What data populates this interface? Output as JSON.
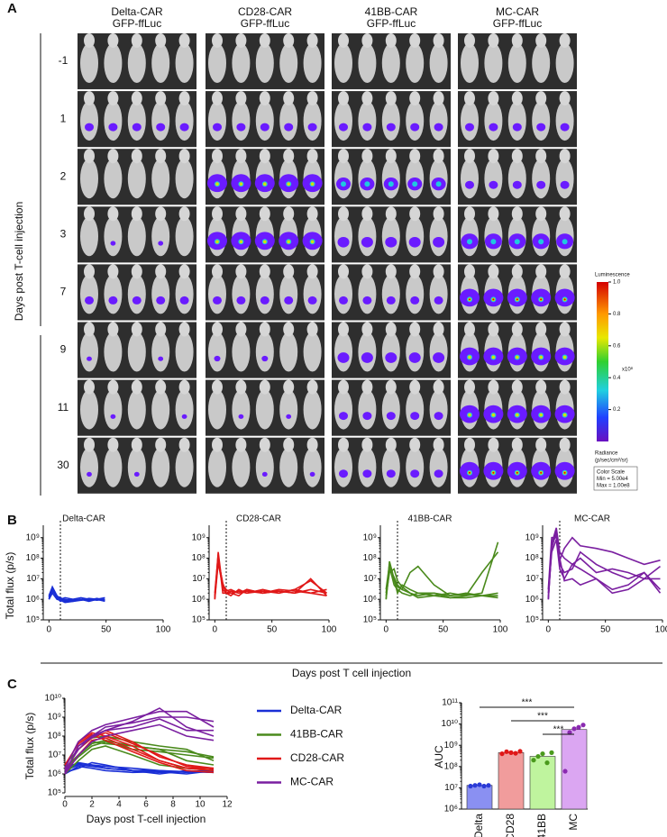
{
  "panel_labels": [
    "A",
    "B",
    "C"
  ],
  "panel_a": {
    "columns": [
      [
        "Delta-CAR",
        "GFP-ffLuc"
      ],
      [
        "CD28-CAR",
        "GFP-ffLuc"
      ],
      [
        "41BB-CAR",
        "GFP-ffLuc"
      ],
      [
        "MC-CAR",
        "GFP-ffLuc"
      ]
    ],
    "rows": [
      "-1",
      "1",
      "2",
      "3",
      "7",
      "9",
      "11",
      "30"
    ],
    "y_label": "Days post T-cell injection",
    "colorbar": {
      "title": "Luminescence",
      "lim": [
        0,
        1
      ],
      "ticks": [
        {
          "value": 1,
          "label": "1.0"
        },
        0.8,
        0.6,
        0.4,
        0.2
      ],
      "multiplier": "x10⁸",
      "unit_label": [
        "Radiance",
        "(p/sec/cm²/sr)"
      ],
      "scale_box": [
        "Color Scale",
        "Min = 5.00e4",
        "Max = 1.00e8"
      ]
    }
  },
  "panel_b": {
    "x_label": "Days post T cell injection",
    "y_label": "Total flux (p/s)"
  },
  "chart_data": [
    {
      "type": "line",
      "title": "Delta-CAR",
      "log_scale": true,
      "vline": 10,
      "xlim": [
        -5,
        100
      ],
      "xticks": [
        0,
        50,
        100
      ],
      "ylim": [
        100000.0,
        4000000000.0
      ],
      "yticks": [
        {
          "value": 100000.0,
          "label": "10⁵"
        },
        {
          "value": 1000000.0,
          "label": "10⁶"
        },
        {
          "value": 10000000.0,
          "label": "10⁷"
        },
        {
          "value": 100000000.0,
          "label": "10⁸"
        },
        {
          "value": 1000000000.0,
          "label": "10⁹"
        }
      ],
      "x": [
        0,
        3,
        7,
        10,
        14,
        21,
        28,
        35,
        42,
        49
      ],
      "series": [
        {
          "color": "#1a2fd6",
          "values": [
            1500000.0,
            4000000.0,
            1500000.0,
            1000000.0,
            1200000.0,
            1000000.0,
            900000.0,
            1000000.0,
            1000000.0,
            800000.0
          ]
        },
        {
          "color": "#1a2fd6",
          "values": [
            1000000.0,
            3000000.0,
            1200000.0,
            800000.0,
            1000000.0,
            800000.0,
            1000000.0,
            900000.0,
            1100000.0,
            900000.0
          ]
        },
        {
          "color": "#1a2fd6",
          "values": [
            1200000.0,
            2500000.0,
            1400000.0,
            1200000.0,
            900000.0,
            1000000.0,
            1200000.0,
            1000000.0,
            900000.0,
            1000000.0
          ]
        },
        {
          "color": "#1a2fd6",
          "values": [
            1000000.0,
            2000000.0,
            1000000.0,
            900000.0,
            700000.0,
            800000.0,
            900000.0,
            1100000.0,
            1000000.0,
            1200000.0
          ]
        },
        {
          "color": "#1a2fd6",
          "values": [
            1300000.0,
            3500000.0,
            1100000.0,
            1000000.0,
            800000.0,
            900000.0,
            1000000.0,
            800000.0,
            1000000.0,
            900000.0
          ]
        }
      ]
    },
    {
      "type": "line",
      "title": "CD28-CAR",
      "log_scale": true,
      "vline": 10,
      "xlim": [
        -5,
        100
      ],
      "xticks": [
        0,
        50,
        100
      ],
      "ylim": [
        100000.0,
        4000000000.0
      ],
      "yticks": [
        {
          "value": 100000.0,
          "label": "10⁵"
        },
        {
          "value": 1000000.0,
          "label": "10⁶"
        },
        {
          "value": 10000000.0,
          "label": "10⁷"
        },
        {
          "value": 100000000.0,
          "label": "10⁸"
        },
        {
          "value": 1000000000.0,
          "label": "10⁹"
        }
      ],
      "x": [
        0,
        3,
        7,
        10,
        14,
        21,
        28,
        42,
        56,
        70,
        84,
        98
      ],
      "series": [
        {
          "color": "#e01818",
          "values": [
            1000000.0,
            200000000.0,
            3000000.0,
            2000000.0,
            2500000.0,
            2000000.0,
            3000000.0,
            2000000.0,
            2500000.0,
            2000000.0,
            3000000.0,
            2000000.0
          ]
        },
        {
          "color": "#e01818",
          "values": [
            1500000.0,
            100000000.0,
            5000000.0,
            3000000.0,
            2000000.0,
            2500000.0,
            2000000.0,
            3000000.0,
            2000000.0,
            3000000.0,
            8000000.0,
            2000000.0
          ]
        },
        {
          "color": "#e01818",
          "values": [
            1000000.0,
            60000000.0,
            4000000.0,
            2500000.0,
            3000000.0,
            2000000.0,
            2500000.0,
            2000000.0,
            3000000.0,
            2500000.0,
            2000000.0,
            1500000.0
          ]
        },
        {
          "color": "#e01818",
          "values": [
            2000000.0,
            150000000.0,
            2000000.0,
            2000000.0,
            1500000.0,
            3000000.0,
            2000000.0,
            2500000.0,
            2000000.0,
            3000000.0,
            2000000.0,
            3000000.0
          ]
        },
        {
          "color": "#e01818",
          "values": [
            1200000.0,
            80000000.0,
            6000000.0,
            2000000.0,
            2000000.0,
            1500000.0,
            3000000.0,
            2000000.0,
            2500000.0,
            2000000.0,
            10000000.0,
            1500000.0
          ]
        }
      ]
    },
    {
      "type": "line",
      "title": "41BB-CAR",
      "log_scale": true,
      "vline": 10,
      "xlim": [
        -5,
        100
      ],
      "xticks": [
        0,
        50,
        100
      ],
      "ylim": [
        100000.0,
        4000000000.0
      ],
      "yticks": [
        {
          "value": 100000.0,
          "label": "10⁵"
        },
        {
          "value": 1000000.0,
          "label": "10⁶"
        },
        {
          "value": 10000000.0,
          "label": "10⁷"
        },
        {
          "value": 100000000.0,
          "label": "10⁸"
        },
        {
          "value": 1000000000.0,
          "label": "10⁹"
        }
      ],
      "x": [
        0,
        3,
        7,
        10,
        14,
        21,
        28,
        42,
        56,
        70,
        84,
        98
      ],
      "series": [
        {
          "color": "#4a8a1c",
          "values": [
            1000000.0,
            70000000.0,
            10000000.0,
            2000000.0,
            5000000.0,
            3000000.0,
            2000000.0,
            1500000.0,
            2000000.0,
            1500000.0,
            2000000.0,
            600000000.0
          ]
        },
        {
          "color": "#4a8a1c",
          "values": [
            2000000.0,
            40000000.0,
            5000000.0,
            3000000.0,
            2000000.0,
            1500000.0,
            2000000.0,
            2000000.0,
            1500000.0,
            2000000.0,
            1500000.0,
            2000000.0
          ]
        },
        {
          "color": "#4a8a1c",
          "values": [
            1500000.0,
            20000000.0,
            30000000.0,
            8000000.0,
            4000000.0,
            2000000.0,
            1500000.0,
            2000000.0,
            1200000.0,
            1500000.0,
            20000000.0,
            200000000.0
          ]
        },
        {
          "color": "#4a8a1c",
          "values": [
            3000000.0,
            50000000.0,
            8000000.0,
            4000000.0,
            3000000.0,
            2000000.0,
            1200000.0,
            1500000.0,
            1200000.0,
            1200000.0,
            1500000.0,
            1200000.0
          ]
        },
        {
          "color": "#4a8a1c",
          "values": [
            1000000.0,
            30000000.0,
            12000000.0,
            5000000.0,
            3000000.0,
            20000000.0,
            40000000.0,
            5000000.0,
            1500000.0,
            1800000.0,
            1500000.0,
            1500000.0
          ]
        }
      ]
    },
    {
      "type": "line",
      "title": "MC-CAR",
      "log_scale": true,
      "vline": 10,
      "xlim": [
        -5,
        100
      ],
      "xticks": [
        0,
        50,
        100
      ],
      "ylim": [
        100000.0,
        4000000000.0
      ],
      "yticks": [
        {
          "value": 100000.0,
          "label": "10⁵"
        },
        {
          "value": 1000000.0,
          "label": "10⁶"
        },
        {
          "value": 10000000.0,
          "label": "10⁷"
        },
        {
          "value": 100000000.0,
          "label": "10⁸"
        },
        {
          "value": 1000000000.0,
          "label": "10⁹"
        }
      ],
      "x": [
        0,
        3,
        7,
        10,
        14,
        21,
        28,
        42,
        56,
        70,
        84,
        98
      ],
      "series": [
        {
          "color": "#7a1fa0",
          "values": [
            1000000.0,
            500000000.0,
            3000000000.0,
            200000000.0,
            100000000.0,
            50000000.0,
            100000000.0,
            20000000.0,
            30000000.0,
            20000000.0,
            10000000.0,
            40000000.0
          ]
        },
        {
          "color": "#7a1fa0",
          "values": [
            3000000.0,
            1000000000.0,
            1000000000.0,
            80000000.0,
            300000000.0,
            1000000000.0,
            400000000.0,
            300000000.0,
            200000000.0,
            100000000.0,
            50000000.0,
            80000000.0
          ]
        },
        {
          "color": "#7a1fa0",
          "values": [
            1000000.0,
            300000000.0,
            2000000000.0,
            50000000.0,
            20000000.0,
            30000000.0,
            200000000.0,
            50000000.0,
            20000000.0,
            10000000.0,
            20000000.0,
            3000000.0
          ]
        },
        {
          "color": "#7a1fa0",
          "values": [
            2000000.0,
            200000000.0,
            800000000.0,
            30000000.0,
            10000000.0,
            50000000.0,
            30000000.0,
            10000000.0,
            2000000.0,
            3000000.0,
            10000000.0,
            10000000.0
          ]
        },
        {
          "color": "#7a1fa0",
          "values": [
            1000000.0,
            400000000.0,
            1500000000.0,
            100000000.0,
            8000000.0,
            10000000.0,
            5000000.0,
            10000000.0,
            3000000.0,
            5000000.0,
            20000000.0,
            2000000.0
          ]
        }
      ]
    },
    {
      "type": "grouped_line",
      "log_scale": true,
      "x_label": "Days post T-cell injection",
      "y_label": "Total flux (p/s)",
      "xlim": [
        0,
        12
      ],
      "xticks": [
        0,
        2,
        4,
        6,
        8,
        10,
        12
      ],
      "ylim": [
        100000.0,
        10000000000.0
      ],
      "yticks": [
        {
          "value": 100000.0,
          "label": "10⁵"
        },
        {
          "value": 1000000.0,
          "label": "10⁶"
        },
        {
          "value": 10000000.0,
          "label": "10⁷"
        },
        {
          "value": 100000000.0,
          "label": "10⁸"
        },
        {
          "value": 1000000000.0,
          "label": "10⁹"
        },
        {
          "value": 10000000000.0,
          "label": "10¹⁰"
        }
      ],
      "x": [
        0,
        1,
        2,
        3,
        5,
        7,
        9,
        11
      ],
      "groups": [
        {
          "name": "Delta-CAR",
          "color": "#1a2fd6",
          "series": [
            [
              1500000.0,
              3000000.0,
              2500000.0,
              2000000.0,
              1500000.0,
              1200000.0,
              1300000.0,
              1200000.0
            ],
            [
              2000000.0,
              4000000.0,
              3000000.0,
              2500000.0,
              2000000.0,
              1500000.0,
              1200000.0,
              1400000.0
            ],
            [
              1200000.0,
              2000000.0,
              4000000.0,
              3000000.0,
              1500000.0,
              1000000.0,
              1500000.0,
              1200000.0
            ],
            [
              1000000.0,
              2500000.0,
              2000000.0,
              1500000.0,
              1200000.0,
              1300000.0,
              1000000.0,
              1500000.0
            ],
            [
              1800000.0,
              3500000.0,
              3000000.0,
              2000000.0,
              1500000.0,
              1500000.0,
              1300000.0,
              1600000.0
            ]
          ]
        },
        {
          "name": "41BB-CAR",
          "color": "#4a8a1c",
          "series": [
            [
              2000000.0,
              10000000.0,
              50000000.0,
              40000000.0,
              30000000.0,
              20000000.0,
              15000000.0,
              8000000.0
            ],
            [
              1500000.0,
              8000000.0,
              30000000.0,
              50000000.0,
              20000000.0,
              15000000.0,
              10000000.0,
              7000000.0
            ],
            [
              3000000.0,
              20000000.0,
              80000000.0,
              100000000.0,
              50000000.0,
              30000000.0,
              20000000.0,
              5000000.0
            ],
            [
              1000000.0,
              5000000.0,
              20000000.0,
              30000000.0,
              10000000.0,
              3000000.0,
              2000000.0,
              1500000.0
            ],
            [
              2000000.0,
              10000000.0,
              40000000.0,
              60000000.0,
              30000000.0,
              20000000.0,
              5000000.0,
              3000000.0
            ]
          ]
        },
        {
          "name": "CD28-CAR",
          "color": "#e01818",
          "series": [
            [
              1000000.0,
              30000000.0,
              100000000.0,
              200000000.0,
              50000000.0,
              8000000.0,
              3000000.0,
              2000000.0
            ],
            [
              2000000.0,
              50000000.0,
              150000000.0,
              100000000.0,
              30000000.0,
              5000000.0,
              2000000.0,
              1500000.0
            ],
            [
              1500000.0,
              20000000.0,
              80000000.0,
              150000000.0,
              40000000.0,
              10000000.0,
              2500000.0,
              1800000.0
            ],
            [
              1000000.0,
              10000000.0,
              60000000.0,
              80000000.0,
              20000000.0,
              5000000.0,
              2000000.0,
              2000000.0
            ],
            [
              3000000.0,
              40000000.0,
              120000000.0,
              60000000.0,
              15000000.0,
              4000000.0,
              1500000.0,
              1200000.0
            ]
          ]
        },
        {
          "name": "MC-CAR",
          "color": "#7a1fa0",
          "series": [
            [
              1000000.0,
              30000000.0,
              100000000.0,
              200000000.0,
              600000000.0,
              3000000000.0,
              300000000.0,
              100000000.0
            ],
            [
              2000000.0,
              50000000.0,
              200000000.0,
              400000000.0,
              900000000.0,
              2000000000.0,
              2000000000.0,
              300000000.0
            ],
            [
              1500000.0,
              20000000.0,
              100000000.0,
              300000000.0,
              500000000.0,
              1000000000.0,
              1000000000.0,
              600000000.0
            ],
            [
              1000000.0,
              30000000.0,
              80000000.0,
              200000000.0,
              300000000.0,
              800000000.0,
              200000000.0,
              200000000.0
            ],
            [
              1000000.0,
              10000000.0,
              50000000.0,
              100000000.0,
              200000000.0,
              400000000.0,
              100000000.0,
              60000000.0
            ]
          ]
        }
      ]
    },
    {
      "type": "bar",
      "log_scale": true,
      "y_label": "AUC",
      "ylim": [
        1000000.0,
        100000000000.0
      ],
      "yticks": [
        {
          "value": 1000000.0,
          "label": "10⁶"
        },
        {
          "value": 10000000.0,
          "label": "10⁷"
        },
        {
          "value": 100000000.0,
          "label": "10⁸"
        },
        {
          "value": 1000000000.0,
          "label": "10⁹"
        },
        {
          "value": 10000000000.0,
          "label": "10¹⁰"
        },
        {
          "value": 100000000000.0,
          "label": "10¹¹"
        }
      ],
      "categories": [
        "Delta",
        "CD28",
        "41BB",
        "MC"
      ],
      "values": [
        13000000.0,
        450000000.0,
        300000000.0,
        5500000000.0
      ],
      "colors": [
        "#8a90f2",
        "#f19c9c",
        "#bff49e",
        "#dba6f2"
      ],
      "point_colors": [
        "#2a3ad6",
        "#e01818",
        "#4a9a1c",
        "#8a2ab0"
      ],
      "points": [
        [
          12000000.0,
          13000000.0,
          14000000.0,
          12000000.0,
          13000000.0
        ],
        [
          400000000.0,
          500000000.0,
          450000000.0,
          420000000.0,
          520000000.0
        ],
        [
          200000000.0,
          300000000.0,
          400000000.0,
          150000000.0,
          450000000.0
        ],
        [
          60000000.0,
          4000000000.0,
          6000000000.0,
          7000000000.0,
          9000000000.0
        ]
      ],
      "significance": [
        "***",
        "***",
        "***"
      ]
    }
  ]
}
